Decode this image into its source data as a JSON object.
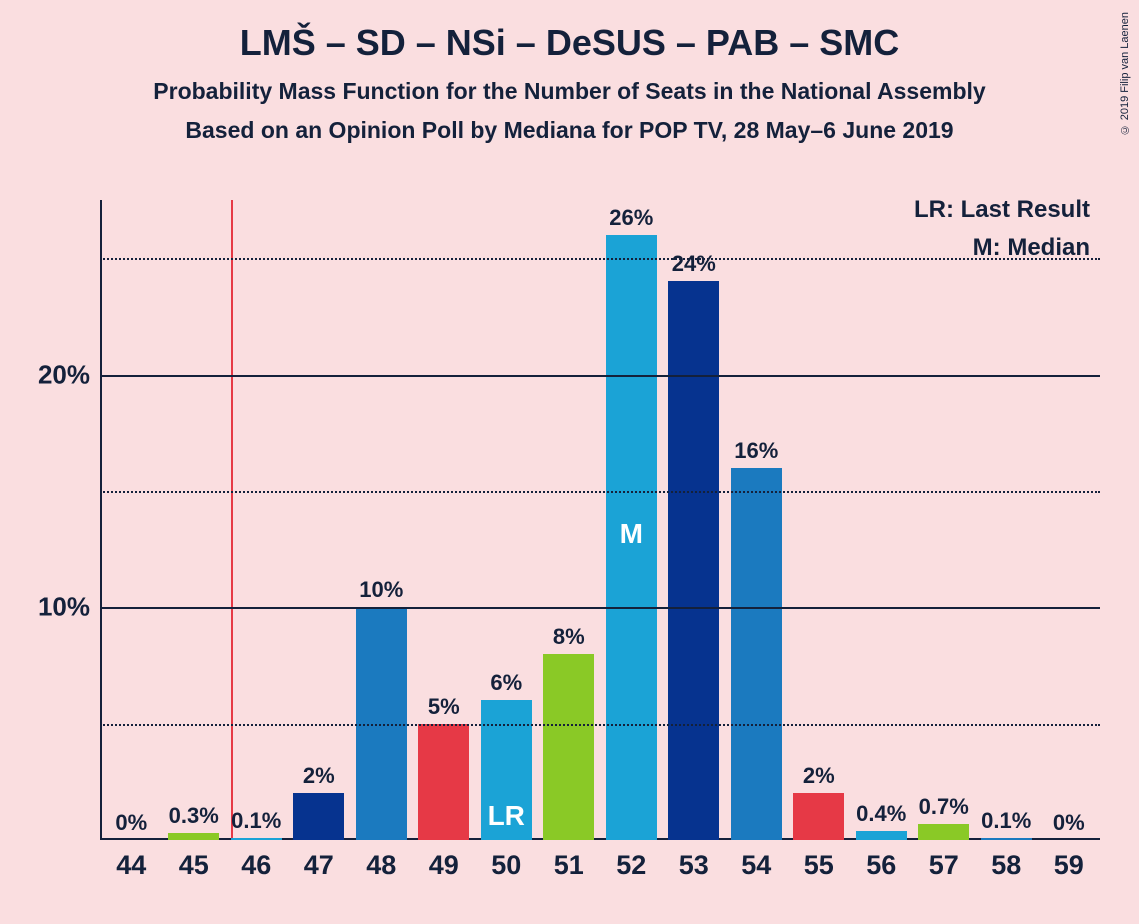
{
  "title": "LMŠ – SD – NSi – DeSUS – PAB – SMC",
  "subtitle1": "Probability Mass Function for the Number of Seats in the National Assembly",
  "subtitle2": "Based on an Opinion Poll by Mediana for POP TV, 28 May–6 June 2019",
  "copyright": "© 2019 Filip van Laenen",
  "legend": {
    "lr": "LR: Last Result",
    "m": "M: Median"
  },
  "chart": {
    "type": "bar",
    "background_color": "#fadee0",
    "axis_color": "#14213b",
    "lr_line_color": "#e63946",
    "lr_position": 45.6,
    "ylim": [
      0,
      27.5
    ],
    "y_ticks": [
      {
        "value": 5,
        "label": "",
        "style": "dotted"
      },
      {
        "value": 10,
        "label": "10%",
        "style": "solid"
      },
      {
        "value": 15,
        "label": "",
        "style": "dotted"
      },
      {
        "value": 20,
        "label": "20%",
        "style": "solid"
      },
      {
        "value": 25,
        "label": "",
        "style": "dotted"
      }
    ],
    "bar_width": 0.82,
    "colors": {
      "darkblue": "#06338f",
      "medblue": "#1b7abf",
      "lightblue": "#1ba3d6",
      "green": "#8ac926",
      "red": "#e63946"
    },
    "font": {
      "title_size": 36,
      "subtitle_size": 23,
      "tick_size": 27,
      "bar_label_size": 22,
      "legend_size": 24,
      "inner_label_size": 28
    },
    "bars": [
      {
        "x": 44,
        "value": 0,
        "label": "0%",
        "color": "#1b7abf",
        "inner": ""
      },
      {
        "x": 45,
        "value": 0.3,
        "label": "0.3%",
        "color": "#8ac926",
        "inner": ""
      },
      {
        "x": 46,
        "value": 0.1,
        "label": "0.1%",
        "color": "#1ba3d6",
        "inner": ""
      },
      {
        "x": 47,
        "value": 2,
        "label": "2%",
        "color": "#06338f",
        "inner": ""
      },
      {
        "x": 48,
        "value": 10,
        "label": "10%",
        "color": "#1b7abf",
        "inner": ""
      },
      {
        "x": 49,
        "value": 5,
        "label": "5%",
        "color": "#e63946",
        "inner": ""
      },
      {
        "x": 50,
        "value": 6,
        "label": "6%",
        "color": "#1ba3d6",
        "inner": "LR"
      },
      {
        "x": 51,
        "value": 8,
        "label": "8%",
        "color": "#8ac926",
        "inner": ""
      },
      {
        "x": 52,
        "value": 26,
        "label": "26%",
        "color": "#1ba3d6",
        "inner": "M"
      },
      {
        "x": 53,
        "value": 24,
        "label": "24%",
        "color": "#06338f",
        "inner": ""
      },
      {
        "x": 54,
        "value": 16,
        "label": "16%",
        "color": "#1b7abf",
        "inner": ""
      },
      {
        "x": 55,
        "value": 2,
        "label": "2%",
        "color": "#e63946",
        "inner": ""
      },
      {
        "x": 56,
        "value": 0.4,
        "label": "0.4%",
        "color": "#1ba3d6",
        "inner": ""
      },
      {
        "x": 57,
        "value": 0.7,
        "label": "0.7%",
        "color": "#8ac926",
        "inner": ""
      },
      {
        "x": 58,
        "value": 0.1,
        "label": "0.1%",
        "color": "#1b7abf",
        "inner": ""
      },
      {
        "x": 59,
        "value": 0,
        "label": "0%",
        "color": "#06338f",
        "inner": ""
      }
    ]
  }
}
